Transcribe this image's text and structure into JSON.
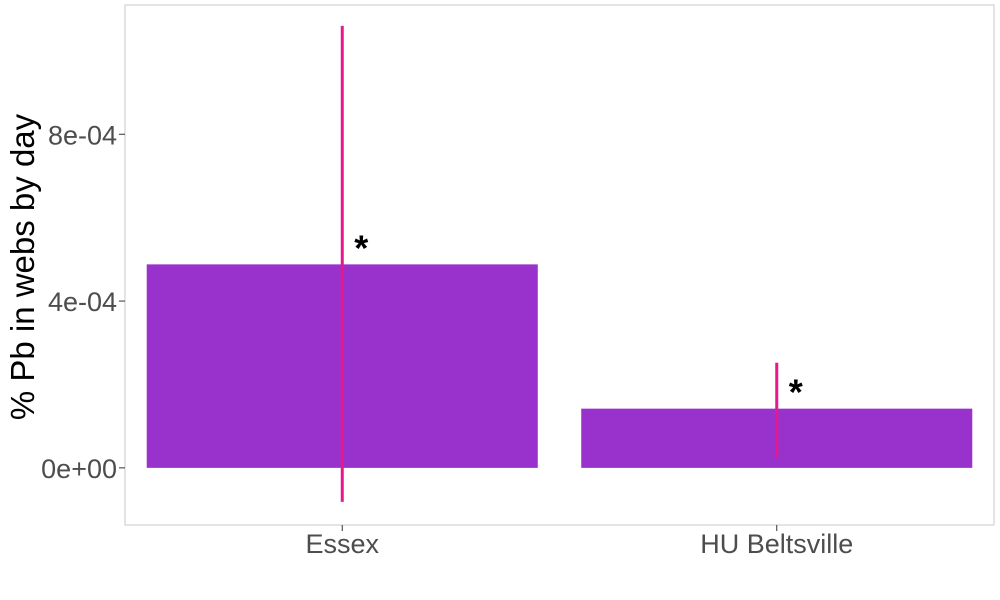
{
  "chart_data": {
    "type": "bar",
    "title": "",
    "xlabel": "",
    "ylabel": "% Pb in webs by day",
    "categories": [
      "Essex",
      "HU Beltsville"
    ],
    "values": [
      0.000488,
      0.000142
    ],
    "error_bars": [
      {
        "low": -8.15e-05,
        "high": 0.00106
      },
      {
        "low": 2.55e-05,
        "high": 0.000252
      }
    ],
    "annotations": [
      "*",
      "*"
    ],
    "y_ticks": [
      0,
      0.0004,
      0.0008
    ],
    "y_tick_labels": [
      "0e+00",
      "4e-04",
      "8e-04"
    ],
    "ylim": [
      -0.000137,
      0.00111
    ],
    "grid": false,
    "legend": "none",
    "colors": {
      "bar": "#9932CC",
      "error_bar": "#E6198C",
      "panel_border": "#c8c8c8",
      "tick_text": "#4d4d4d"
    }
  }
}
